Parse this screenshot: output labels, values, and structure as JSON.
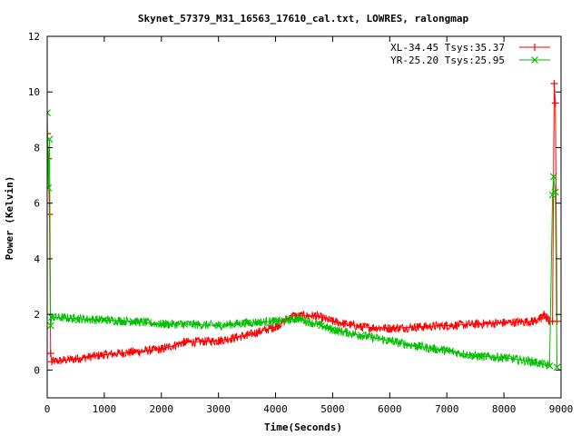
{
  "chart_data": {
    "type": "line",
    "title": "Skynet_57379_M31_16563_17610_cal.txt, LOWRES, ralongmap",
    "xlabel": "Time(Seconds)",
    "ylabel": "Power (Kelvin)",
    "xlim": [
      0,
      9000
    ],
    "ylim": [
      -1,
      12
    ],
    "xticks": [
      "0",
      "1000",
      "2000",
      "3000",
      "4000",
      "5000",
      "6000",
      "7000",
      "8000",
      "9000"
    ],
    "yticks": [
      "0",
      "2",
      "4",
      "6",
      "8",
      "10",
      "12"
    ],
    "legend_position": "top-right",
    "grid": false,
    "series": [
      {
        "name": "XL-34.45 Tsys:35.37",
        "color": "#ff0000",
        "marker": "plus",
        "noise": 0.33,
        "x": [
          0,
          20,
          40,
          60,
          80,
          500,
          1000,
          1500,
          2000,
          2400,
          3000,
          3500,
          4000,
          4300,
          4700,
          5000,
          5500,
          6000,
          6500,
          7000,
          7500,
          8000,
          8500,
          8650,
          8700,
          8750,
          8800,
          8850,
          8880,
          8900,
          8930
        ],
        "values": [
          8.5,
          7.6,
          5.6,
          0.6,
          0.3,
          0.4,
          0.55,
          0.65,
          0.75,
          1.0,
          1.05,
          1.25,
          1.55,
          1.95,
          1.95,
          1.75,
          1.55,
          1.5,
          1.55,
          1.6,
          1.65,
          1.7,
          1.75,
          1.85,
          2.0,
          1.9,
          1.75,
          1.75,
          10.3,
          9.6,
          1.75
        ]
      },
      {
        "name": "YR-25.20 Tsys:25.95",
        "color": "#00c000",
        "marker": "cross",
        "noise": 0.33,
        "x": [
          0,
          20,
          40,
          60,
          80,
          500,
          1000,
          1500,
          2000,
          2400,
          3000,
          3500,
          4000,
          4400,
          4800,
          5000,
          5500,
          6000,
          6500,
          7000,
          7500,
          8000,
          8500,
          8800,
          8850,
          8870,
          8900,
          8930
        ],
        "values": [
          9.25,
          6.55,
          8.3,
          1.6,
          1.9,
          1.85,
          1.8,
          1.75,
          1.65,
          1.65,
          1.6,
          1.7,
          1.75,
          1.85,
          1.6,
          1.45,
          1.25,
          1.05,
          0.85,
          0.7,
          0.5,
          0.45,
          0.3,
          0.15,
          6.3,
          6.95,
          6.4,
          0.1
        ]
      }
    ]
  }
}
